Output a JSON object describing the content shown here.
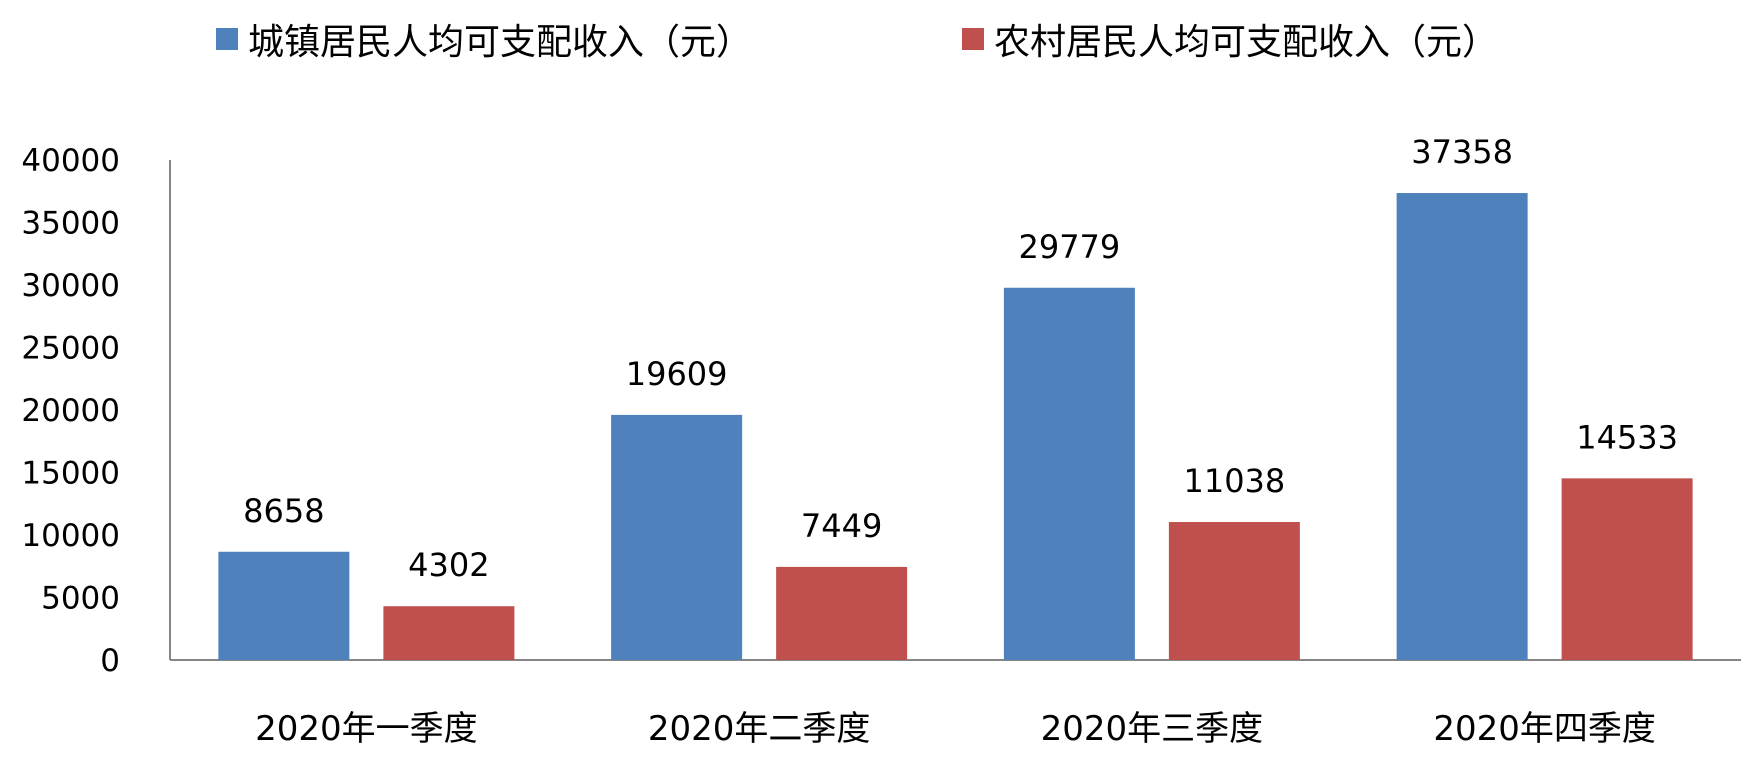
{
  "chart_data": {
    "type": "bar",
    "categories": [
      "2020年一季度",
      "2020年二季度",
      "2020年三季度",
      "2020年四季度"
    ],
    "series": [
      {
        "name": "城镇居民人均可支配收入（元）",
        "values": [
          8658,
          19609,
          29779,
          37358
        ],
        "color": "#4F81BD"
      },
      {
        "name": "农村居民人均可支配收入（元）",
        "values": [
          4302,
          7449,
          11038,
          14533
        ],
        "color": "#C0504D"
      }
    ],
    "yticks": [
      "0",
      "5000",
      "10000",
      "15000",
      "20000",
      "25000",
      "30000",
      "35000",
      "40000"
    ],
    "ylim": [
      0,
      40000
    ],
    "legend_position": "top",
    "grid": false,
    "title": "",
    "xlabel": "",
    "ylabel": ""
  }
}
